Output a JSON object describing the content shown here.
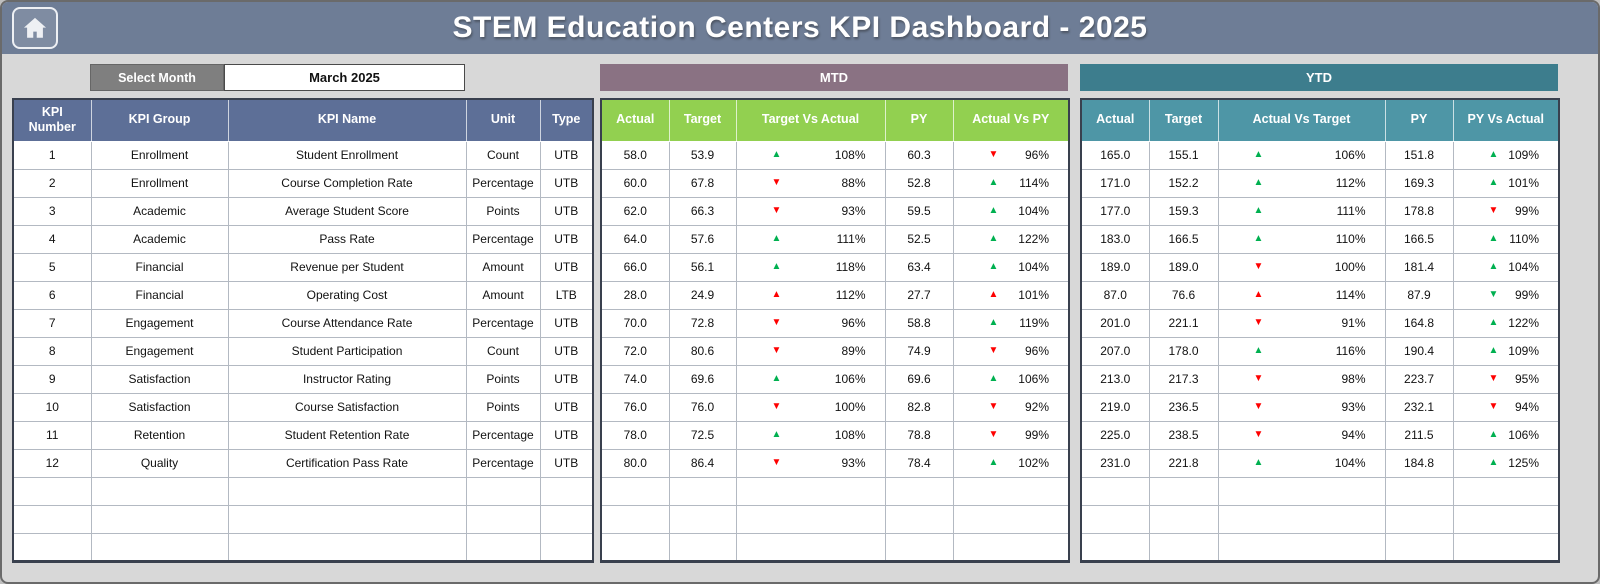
{
  "header": {
    "title": "STEM Education Centers KPI Dashboard - 2025"
  },
  "controls": {
    "select_month_label": "Select Month",
    "selected_month": "March 2025"
  },
  "bands": {
    "mtd": "MTD",
    "ytd": "YTD"
  },
  "table": {
    "info_headers": [
      "KPI Number",
      "KPI Group",
      "KPI Name",
      "Unit",
      "Type"
    ],
    "mtd_headers": [
      "Actual",
      "Target",
      "Target Vs Actual",
      "PY",
      "Actual Vs PY"
    ],
    "ytd_headers": [
      "Actual",
      "Target",
      "Actual Vs Target",
      "PY",
      "PY Vs Actual"
    ],
    "empty_rows": 3,
    "rows": [
      {
        "num": "1",
        "group": "Enrollment",
        "name": "Student Enrollment",
        "unit": "Count",
        "type": "UTB",
        "mtd": {
          "actual": "58.0",
          "target": "53.9",
          "cmp1": {
            "dir": "up",
            "color": "green",
            "val": "108%"
          },
          "py": "60.3",
          "cmp2": {
            "dir": "down",
            "color": "red",
            "val": "96%"
          }
        },
        "ytd": {
          "actual": "165.0",
          "target": "155.1",
          "cmp1": {
            "dir": "up",
            "color": "green",
            "val": "106%"
          },
          "py": "151.8",
          "cmp2": {
            "dir": "up",
            "color": "green",
            "val": "109%"
          }
        }
      },
      {
        "num": "2",
        "group": "Enrollment",
        "name": "Course Completion Rate",
        "unit": "Percentage",
        "type": "UTB",
        "mtd": {
          "actual": "60.0",
          "target": "67.8",
          "cmp1": {
            "dir": "down",
            "color": "red",
            "val": "88%"
          },
          "py": "52.8",
          "cmp2": {
            "dir": "up",
            "color": "green",
            "val": "114%"
          }
        },
        "ytd": {
          "actual": "171.0",
          "target": "152.2",
          "cmp1": {
            "dir": "up",
            "color": "green",
            "val": "112%"
          },
          "py": "169.3",
          "cmp2": {
            "dir": "up",
            "color": "green",
            "val": "101%"
          }
        }
      },
      {
        "num": "3",
        "group": "Academic",
        "name": "Average Student Score",
        "unit": "Points",
        "type": "UTB",
        "mtd": {
          "actual": "62.0",
          "target": "66.3",
          "cmp1": {
            "dir": "down",
            "color": "red",
            "val": "93%"
          },
          "py": "59.5",
          "cmp2": {
            "dir": "up",
            "color": "green",
            "val": "104%"
          }
        },
        "ytd": {
          "actual": "177.0",
          "target": "159.3",
          "cmp1": {
            "dir": "up",
            "color": "green",
            "val": "111%"
          },
          "py": "178.8",
          "cmp2": {
            "dir": "down",
            "color": "red",
            "val": "99%"
          }
        }
      },
      {
        "num": "4",
        "group": "Academic",
        "name": "Pass Rate",
        "unit": "Percentage",
        "type": "UTB",
        "mtd": {
          "actual": "64.0",
          "target": "57.6",
          "cmp1": {
            "dir": "up",
            "color": "green",
            "val": "111%"
          },
          "py": "52.5",
          "cmp2": {
            "dir": "up",
            "color": "green",
            "val": "122%"
          }
        },
        "ytd": {
          "actual": "183.0",
          "target": "166.5",
          "cmp1": {
            "dir": "up",
            "color": "green",
            "val": "110%"
          },
          "py": "166.5",
          "cmp2": {
            "dir": "up",
            "color": "green",
            "val": "110%"
          }
        }
      },
      {
        "num": "5",
        "group": "Financial",
        "name": "Revenue per Student",
        "unit": "Amount",
        "type": "UTB",
        "mtd": {
          "actual": "66.0",
          "target": "56.1",
          "cmp1": {
            "dir": "up",
            "color": "green",
            "val": "118%"
          },
          "py": "63.4",
          "cmp2": {
            "dir": "up",
            "color": "green",
            "val": "104%"
          }
        },
        "ytd": {
          "actual": "189.0",
          "target": "189.0",
          "cmp1": {
            "dir": "down",
            "color": "red",
            "val": "100%"
          },
          "py": "181.4",
          "cmp2": {
            "dir": "up",
            "color": "green",
            "val": "104%"
          }
        }
      },
      {
        "num": "6",
        "group": "Financial",
        "name": "Operating Cost",
        "unit": "Amount",
        "type": "LTB",
        "mtd": {
          "actual": "28.0",
          "target": "24.9",
          "cmp1": {
            "dir": "up",
            "color": "red",
            "val": "112%"
          },
          "py": "27.7",
          "cmp2": {
            "dir": "up",
            "color": "red",
            "val": "101%"
          }
        },
        "ytd": {
          "actual": "87.0",
          "target": "76.6",
          "cmp1": {
            "dir": "up",
            "color": "red",
            "val": "114%"
          },
          "py": "87.9",
          "cmp2": {
            "dir": "down",
            "color": "green",
            "val": "99%"
          }
        }
      },
      {
        "num": "7",
        "group": "Engagement",
        "name": "Course Attendance Rate",
        "unit": "Percentage",
        "type": "UTB",
        "mtd": {
          "actual": "70.0",
          "target": "72.8",
          "cmp1": {
            "dir": "down",
            "color": "red",
            "val": "96%"
          },
          "py": "58.8",
          "cmp2": {
            "dir": "up",
            "color": "green",
            "val": "119%"
          }
        },
        "ytd": {
          "actual": "201.0",
          "target": "221.1",
          "cmp1": {
            "dir": "down",
            "color": "red",
            "val": "91%"
          },
          "py": "164.8",
          "cmp2": {
            "dir": "up",
            "color": "green",
            "val": "122%"
          }
        }
      },
      {
        "num": "8",
        "group": "Engagement",
        "name": "Student Participation",
        "unit": "Count",
        "type": "UTB",
        "mtd": {
          "actual": "72.0",
          "target": "80.6",
          "cmp1": {
            "dir": "down",
            "color": "red",
            "val": "89%"
          },
          "py": "74.9",
          "cmp2": {
            "dir": "down",
            "color": "red",
            "val": "96%"
          }
        },
        "ytd": {
          "actual": "207.0",
          "target": "178.0",
          "cmp1": {
            "dir": "up",
            "color": "green",
            "val": "116%"
          },
          "py": "190.4",
          "cmp2": {
            "dir": "up",
            "color": "green",
            "val": "109%"
          }
        }
      },
      {
        "num": "9",
        "group": "Satisfaction",
        "name": "Instructor Rating",
        "unit": "Points",
        "type": "UTB",
        "mtd": {
          "actual": "74.0",
          "target": "69.6",
          "cmp1": {
            "dir": "up",
            "color": "green",
            "val": "106%"
          },
          "py": "69.6",
          "cmp2": {
            "dir": "up",
            "color": "green",
            "val": "106%"
          }
        },
        "ytd": {
          "actual": "213.0",
          "target": "217.3",
          "cmp1": {
            "dir": "down",
            "color": "red",
            "val": "98%"
          },
          "py": "223.7",
          "cmp2": {
            "dir": "down",
            "color": "red",
            "val": "95%"
          }
        }
      },
      {
        "num": "10",
        "group": "Satisfaction",
        "name": "Course Satisfaction",
        "unit": "Points",
        "type": "UTB",
        "mtd": {
          "actual": "76.0",
          "target": "76.0",
          "cmp1": {
            "dir": "down",
            "color": "red",
            "val": "100%"
          },
          "py": "82.8",
          "cmp2": {
            "dir": "down",
            "color": "red",
            "val": "92%"
          }
        },
        "ytd": {
          "actual": "219.0",
          "target": "236.5",
          "cmp1": {
            "dir": "down",
            "color": "red",
            "val": "93%"
          },
          "py": "232.1",
          "cmp2": {
            "dir": "down",
            "color": "red",
            "val": "94%"
          }
        }
      },
      {
        "num": "11",
        "group": "Retention",
        "name": "Student Retention Rate",
        "unit": "Percentage",
        "type": "UTB",
        "mtd": {
          "actual": "78.0",
          "target": "72.5",
          "cmp1": {
            "dir": "up",
            "color": "green",
            "val": "108%"
          },
          "py": "78.8",
          "cmp2": {
            "dir": "down",
            "color": "red",
            "val": "99%"
          }
        },
        "ytd": {
          "actual": "225.0",
          "target": "238.5",
          "cmp1": {
            "dir": "down",
            "color": "red",
            "val": "94%"
          },
          "py": "211.5",
          "cmp2": {
            "dir": "up",
            "color": "green",
            "val": "106%"
          }
        }
      },
      {
        "num": "12",
        "group": "Quality",
        "name": "Certification Pass Rate",
        "unit": "Percentage",
        "type": "UTB",
        "mtd": {
          "actual": "80.0",
          "target": "86.4",
          "cmp1": {
            "dir": "down",
            "color": "red",
            "val": "93%"
          },
          "py": "78.4",
          "cmp2": {
            "dir": "up",
            "color": "green",
            "val": "102%"
          }
        },
        "ytd": {
          "actual": "231.0",
          "target": "221.8",
          "cmp1": {
            "dir": "up",
            "color": "green",
            "val": "104%"
          },
          "py": "184.8",
          "cmp2": {
            "dir": "up",
            "color": "green",
            "val": "125%"
          }
        }
      }
    ]
  },
  "colors": {
    "page_bg": "#d8d8d8",
    "banner_bg": "#6e7d96",
    "mtd_band_bg": "#8a7283",
    "ytd_band_bg": "#3d7d8d",
    "info_header_bg": "#5d6f97",
    "mtd_header_bg": "#92d050",
    "ytd_header_bg": "#4e96a6",
    "up_green": "#00b050",
    "down_red": "#fe0000",
    "select_month_bg": "#7f7f7f"
  }
}
